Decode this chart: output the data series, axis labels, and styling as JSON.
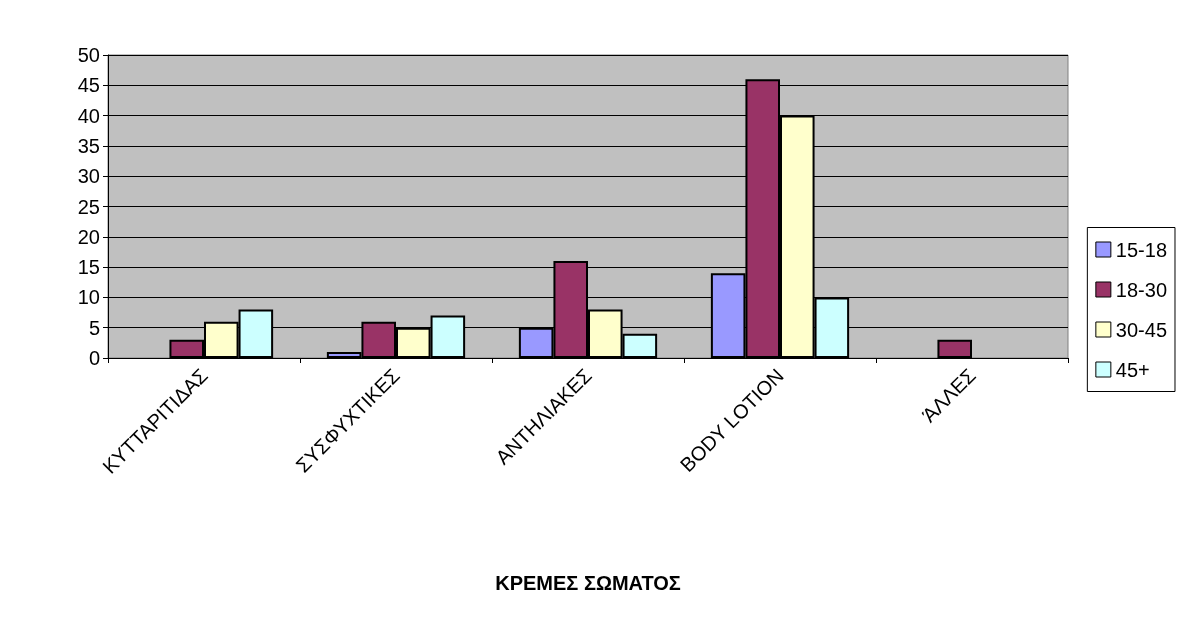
{
  "chart_data": {
    "type": "bar",
    "xlabel": "ΚΡΕΜΕΣ ΣΩΜΑΤΟΣ",
    "categories": [
      "ΚΥΤΤΑΡΙΤΙΔΑΣ",
      "ΣΥΣΦΥΧΤΙΚΕΣ",
      "ΑΝΤΗΛΙΑΚΕΣ",
      "BODY LOTION",
      "ΆΛΛΕΣ"
    ],
    "series": [
      {
        "name": "15-18",
        "color": "#9999ff",
        "values": [
          null,
          1,
          5,
          14,
          null
        ]
      },
      {
        "name": "18-30",
        "color": "#993366",
        "values": [
          3,
          6,
          16,
          46,
          3
        ]
      },
      {
        "name": "30-45",
        "color": "#ffffcc",
        "values": [
          6,
          5,
          8,
          40,
          null
        ]
      },
      {
        "name": "45+",
        "color": "#ccffff",
        "values": [
          8,
          7,
          4,
          10,
          null
        ]
      }
    ],
    "ylim": [
      0,
      50
    ],
    "yticks": [
      0,
      5,
      10,
      15,
      20,
      25,
      30,
      35,
      40,
      45,
      50
    ],
    "grid": "y",
    "legend": "right"
  }
}
